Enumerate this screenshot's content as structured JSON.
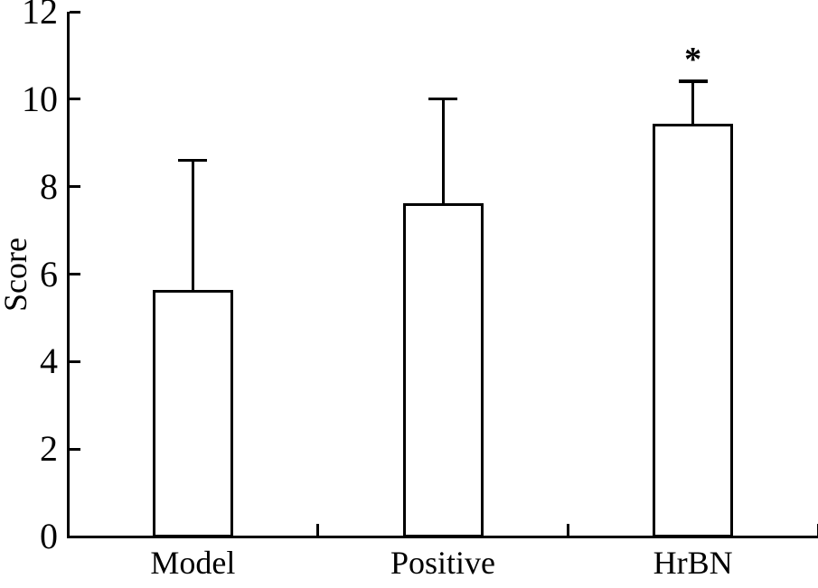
{
  "chart_data": {
    "type": "bar",
    "categories": [
      "Model",
      "Positive",
      "HrBN"
    ],
    "values": [
      5.6,
      7.6,
      9.4
    ],
    "error_upper": [
      3.0,
      2.4,
      1.0
    ],
    "whisker_tops": [
      8.6,
      10.0,
      10.4
    ],
    "title": "",
    "xlabel": "",
    "ylabel": "Score",
    "ylim": [
      0,
      12
    ],
    "yticks": [
      0,
      2,
      4,
      6,
      8,
      10,
      12
    ],
    "grid": false,
    "legend_position": "none",
    "bar_fill": "#ffffff",
    "bar_border": "#000000",
    "axis_color": "#000000",
    "background": "#ffffff",
    "annotations": [
      {
        "category": "HrBN",
        "text": "*"
      }
    ]
  }
}
